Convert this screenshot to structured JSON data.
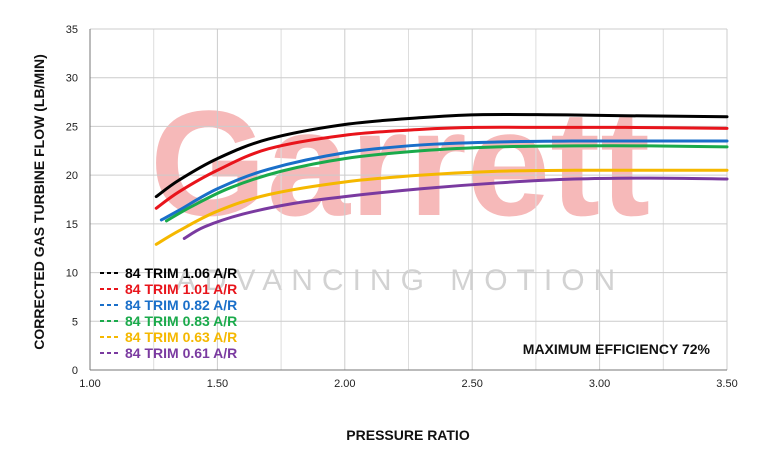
{
  "chart_data": {
    "type": "line",
    "xlabel": "PRESSURE RATIO",
    "ylabel": "CORRECTED GAS TURBINE FLOW (LB/MIN)",
    "xlim": [
      1.0,
      3.5
    ],
    "ylim": [
      0,
      35
    ],
    "x_ticks": [
      "1.00",
      "1.50",
      "2.00",
      "2.50",
      "3.00",
      "3.50"
    ],
    "y_ticks": [
      "0",
      "5",
      "10",
      "15",
      "20",
      "25",
      "30",
      "35"
    ],
    "x_tick_values": [
      1.0,
      1.5,
      2.0,
      2.5,
      3.0,
      3.5
    ],
    "y_tick_values": [
      0,
      5,
      10,
      15,
      20,
      25,
      30,
      35
    ],
    "grid": true,
    "legend_position": "bottom-left",
    "annotation": "MAXIMUM EFFICIENCY 72%",
    "watermark": {
      "brand": "Garrett",
      "tagline": "ADVANCING MOTION"
    },
    "series": [
      {
        "name": "84 TRIM 1.06 A/R",
        "color": "#000000",
        "x": [
          1.26,
          1.35,
          1.5,
          1.7,
          2.0,
          2.3,
          2.52,
          2.8,
          3.1,
          3.5
        ],
        "y": [
          17.8,
          19.5,
          21.7,
          23.7,
          25.2,
          25.9,
          26.2,
          26.2,
          26.1,
          26.0
        ]
      },
      {
        "name": "84 TRIM 1.01 A/R",
        "color": "#e8141b",
        "x": [
          1.26,
          1.35,
          1.5,
          1.7,
          2.0,
          2.3,
          2.52,
          2.8,
          3.1,
          3.5
        ],
        "y": [
          16.6,
          18.3,
          20.5,
          22.7,
          24.1,
          24.7,
          24.9,
          24.9,
          24.9,
          24.8
        ]
      },
      {
        "name": "84 TRIM 0.82 A/R",
        "color": "#1a6fc9",
        "x": [
          1.28,
          1.35,
          1.5,
          1.7,
          2.0,
          2.3,
          2.6,
          2.9,
          3.2,
          3.5
        ],
        "y": [
          15.4,
          16.4,
          18.6,
          20.6,
          22.3,
          23.1,
          23.4,
          23.5,
          23.5,
          23.5
        ]
      },
      {
        "name": "84 TRIM 0.83 A/R",
        "color": "#1aaa4b",
        "x": [
          1.3,
          1.4,
          1.55,
          1.75,
          2.0,
          2.3,
          2.6,
          2.9,
          3.2,
          3.5
        ],
        "y": [
          15.3,
          16.8,
          18.7,
          20.4,
          21.7,
          22.5,
          22.9,
          23.0,
          23.0,
          22.9
        ]
      },
      {
        "name": "84 TRIM 0.63 A/R",
        "color": "#f5b800",
        "x": [
          1.26,
          1.35,
          1.5,
          1.7,
          2.0,
          2.3,
          2.6,
          2.9,
          3.2,
          3.5
        ],
        "y": [
          12.9,
          14.3,
          16.3,
          18.0,
          19.3,
          20.0,
          20.4,
          20.5,
          20.5,
          20.5
        ]
      },
      {
        "name": "84 TRIM 0.61 A/R",
        "color": "#7a3aa0",
        "x": [
          1.37,
          1.45,
          1.6,
          1.8,
          2.0,
          2.3,
          2.6,
          2.9,
          3.2,
          3.5
        ],
        "y": [
          13.5,
          14.7,
          16.0,
          17.1,
          17.8,
          18.6,
          19.2,
          19.6,
          19.7,
          19.6
        ]
      }
    ]
  }
}
